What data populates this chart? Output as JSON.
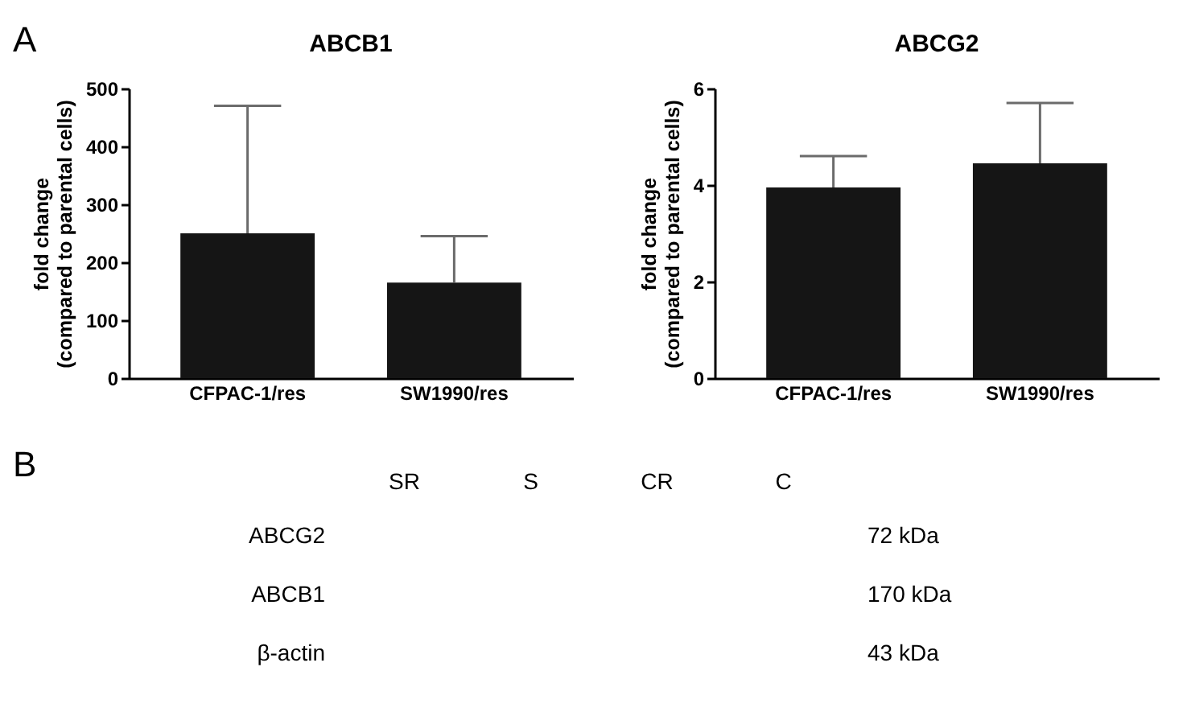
{
  "chart_data": [
    {
      "type": "bar",
      "title": "ABCB1",
      "ylabel": "fold change\n(compared to parental cells)",
      "categories": [
        "CFPAC-1/res",
        "SW1990/res"
      ],
      "values": [
        250,
        165
      ],
      "errors": [
        [
          250,
          470
        ],
        [
          165,
          245
        ]
      ],
      "color": "#151515",
      "ylim": [
        0,
        500
      ],
      "yticks": [
        0,
        100,
        200,
        300,
        400,
        500
      ],
      "annotations": [
        "A"
      ]
    },
    {
      "type": "bar",
      "title": "ABCG2",
      "ylabel": "fold change\n(compared to parental cells)",
      "categories": [
        "CFPAC-1/res",
        "SW1990/res"
      ],
      "values": [
        3.95,
        4.45
      ],
      "errors": [
        [
          3.95,
          4.6
        ],
        [
          4.45,
          5.7
        ]
      ],
      "color": "#151515",
      "ylim": [
        0,
        6
      ],
      "yticks": [
        0,
        2,
        4,
        6
      ]
    },
    {
      "type": "other",
      "annotations": [
        "B"
      ],
      "categories": [
        "SR",
        "S",
        "CR",
        "C"
      ],
      "y_categories": [
        "ABCG2",
        "ABCB1",
        "β-actin"
      ],
      "y2_categories": [
        "72 kDa",
        "170 kDa",
        "43 kDa"
      ]
    }
  ]
}
